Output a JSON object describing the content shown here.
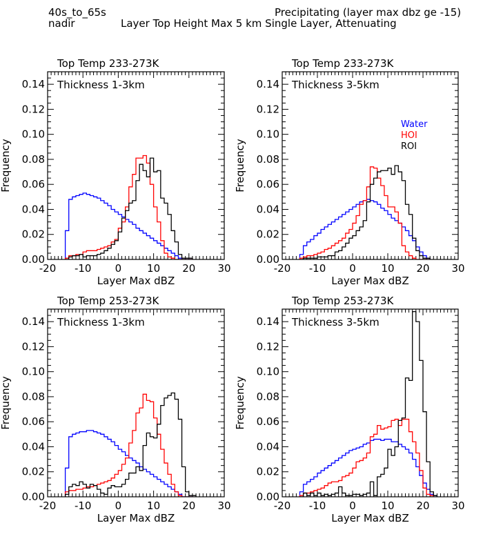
{
  "header": {
    "region": "40s_to_65s",
    "view": "nadir",
    "condition": "Precipitating (layer max dbz ge -15)",
    "subtitle": "Layer Top Height Max 5 km Single Layer, Attenuating"
  },
  "legend": [
    {
      "name": "Water",
      "color": "#0000ff"
    },
    {
      "name": "HOI",
      "color": "#ff0000"
    },
    {
      "name": "ROI",
      "color": "#000000"
    }
  ],
  "chart_data": [
    {
      "type": "histogram-step",
      "title": "Top Temp 233-273K",
      "annotation": "Thickness 1-3km",
      "xlabel": "Layer Max dBZ",
      "ylabel": "Frequency",
      "xlim": [
        -20,
        30
      ],
      "ylim": [
        0,
        0.15
      ],
      "xticks": [
        "-20",
        "-10",
        "0",
        "10",
        "20",
        "30"
      ],
      "yticks": [
        "0.00",
        "0.02",
        "0.04",
        "0.06",
        "0.08",
        "0.10",
        "0.12",
        "0.14"
      ],
      "bin_start": -15,
      "bin_width": 1,
      "series": [
        {
          "name": "Water",
          "color": "#0000ff",
          "values": [
            0.023,
            0.048,
            0.05,
            0.051,
            0.052,
            0.053,
            0.052,
            0.051,
            0.05,
            0.049,
            0.047,
            0.045,
            0.043,
            0.04,
            0.038,
            0.036,
            0.034,
            0.032,
            0.03,
            0.028,
            0.025,
            0.023,
            0.021,
            0.019,
            0.017,
            0.015,
            0.013,
            0.011,
            0.009,
            0.007,
            0.005,
            0.003,
            0.001,
            0.0,
            0.0,
            0.0
          ]
        },
        {
          "name": "HOI",
          "color": "#ff0000",
          "values": [
            0.001,
            0.003,
            0.003,
            0.004,
            0.004,
            0.006,
            0.007,
            0.007,
            0.007,
            0.008,
            0.009,
            0.01,
            0.011,
            0.014,
            0.016,
            0.025,
            0.03,
            0.042,
            0.058,
            0.068,
            0.081,
            0.081,
            0.083,
            0.077,
            0.06,
            0.042,
            0.03,
            0.015,
            0.005,
            0.002,
            0.001,
            0.0,
            0.0,
            0.0,
            0.0,
            0.0
          ]
        },
        {
          "name": "ROI",
          "color": "#000000",
          "values": [
            0.0,
            0.002,
            0.003,
            0.003,
            0.004,
            0.002,
            0.003,
            0.003,
            0.003,
            0.004,
            0.005,
            0.007,
            0.009,
            0.012,
            0.015,
            0.022,
            0.033,
            0.039,
            0.045,
            0.047,
            0.063,
            0.076,
            0.071,
            0.066,
            0.081,
            0.07,
            0.071,
            0.049,
            0.045,
            0.036,
            0.023,
            0.014,
            0.004,
            0.001,
            0.001,
            0.001
          ]
        }
      ]
    },
    {
      "type": "histogram-step",
      "title": "Top Temp 233-273K",
      "annotation": "Thickness 3-5km",
      "xlabel": "Layer Max dBZ",
      "ylabel": "Frequency",
      "xlim": [
        -20,
        30
      ],
      "ylim": [
        0,
        0.15
      ],
      "xticks": [
        "-20",
        "-10",
        "0",
        "10",
        "20",
        "30"
      ],
      "yticks": [
        "0.00",
        "0.02",
        "0.04",
        "0.06",
        "0.08",
        "0.10",
        "0.12",
        "0.14"
      ],
      "bin_start": -15,
      "bin_width": 1,
      "series": [
        {
          "name": "Water",
          "color": "#0000ff",
          "values": [
            0.004,
            0.011,
            0.014,
            0.016,
            0.019,
            0.021,
            0.024,
            0.026,
            0.028,
            0.03,
            0.032,
            0.034,
            0.036,
            0.038,
            0.04,
            0.042,
            0.044,
            0.046,
            0.047,
            0.048,
            0.047,
            0.046,
            0.044,
            0.041,
            0.039,
            0.036,
            0.033,
            0.031,
            0.029,
            0.026,
            0.023,
            0.019,
            0.015,
            0.01,
            0.006,
            0.003,
            0.001
          ]
        },
        {
          "name": "HOI",
          "color": "#ff0000",
          "values": [
            0.001,
            0.002,
            0.003,
            0.003,
            0.004,
            0.005,
            0.006,
            0.008,
            0.009,
            0.011,
            0.013,
            0.015,
            0.017,
            0.021,
            0.024,
            0.029,
            0.035,
            0.044,
            0.047,
            0.058,
            0.074,
            0.073,
            0.065,
            0.059,
            0.051,
            0.042,
            0.042,
            0.038,
            0.029,
            0.011,
            0.006,
            0.003,
            0.001,
            0.0,
            0.0,
            0.0,
            0.0
          ]
        },
        {
          "name": "ROI",
          "color": "#000000",
          "values": [
            0.0,
            0.001,
            0.001,
            0.001,
            0.001,
            0.002,
            0.002,
            0.002,
            0.003,
            0.003,
            0.006,
            0.007,
            0.01,
            0.013,
            0.017,
            0.019,
            0.023,
            0.026,
            0.031,
            0.046,
            0.06,
            0.065,
            0.07,
            0.071,
            0.071,
            0.073,
            0.068,
            0.075,
            0.07,
            0.063,
            0.044,
            0.036,
            0.017,
            0.007,
            0.003,
            0.001,
            0.001
          ]
        }
      ]
    },
    {
      "type": "histogram-step",
      "title": "Top Temp 253-273K",
      "annotation": "Thickness 1-3km",
      "xlabel": "Layer Max dBZ",
      "ylabel": "Frequency",
      "xlim": [
        -20,
        30
      ],
      "ylim": [
        0,
        0.15
      ],
      "xticks": [
        "-20",
        "-10",
        "0",
        "10",
        "20",
        "30"
      ],
      "yticks": [
        "0.00",
        "0.02",
        "0.04",
        "0.06",
        "0.08",
        "0.10",
        "0.12",
        "0.14"
      ],
      "bin_start": -15,
      "bin_width": 1,
      "series": [
        {
          "name": "Water",
          "color": "#0000ff",
          "values": [
            0.023,
            0.048,
            0.05,
            0.051,
            0.052,
            0.052,
            0.053,
            0.053,
            0.052,
            0.051,
            0.05,
            0.048,
            0.046,
            0.044,
            0.041,
            0.038,
            0.036,
            0.033,
            0.031,
            0.029,
            0.027,
            0.024,
            0.022,
            0.02,
            0.018,
            0.016,
            0.014,
            0.012,
            0.01,
            0.008,
            0.006,
            0.004,
            0.002,
            0.0,
            0.0,
            0.0
          ]
        },
        {
          "name": "HOI",
          "color": "#ff0000",
          "values": [
            0.004,
            0.005,
            0.005,
            0.006,
            0.006,
            0.007,
            0.008,
            0.008,
            0.009,
            0.01,
            0.011,
            0.012,
            0.013,
            0.015,
            0.018,
            0.021,
            0.026,
            0.031,
            0.043,
            0.053,
            0.067,
            0.071,
            0.082,
            0.077,
            0.076,
            0.063,
            0.05,
            0.038,
            0.027,
            0.018,
            0.01,
            0.004,
            0.001,
            0.0,
            0.0,
            0.0
          ]
        },
        {
          "name": "ROI",
          "color": "#000000",
          "values": [
            0.002,
            0.008,
            0.01,
            0.009,
            0.012,
            0.01,
            0.007,
            0.01,
            0.009,
            0.006,
            0.003,
            0.002,
            0.007,
            0.009,
            0.008,
            0.008,
            0.01,
            0.014,
            0.019,
            0.019,
            0.024,
            0.021,
            0.041,
            0.051,
            0.048,
            0.047,
            0.058,
            0.073,
            0.079,
            0.081,
            0.083,
            0.078,
            0.062,
            0.024,
            0.004,
            0.001,
            0.001
          ]
        }
      ]
    },
    {
      "type": "histogram-step",
      "title": "Top Temp 253-273K",
      "annotation": "Thickness 3-5km",
      "xlabel": "Layer Max dBZ",
      "ylabel": "Frequency",
      "xlim": [
        -20,
        30
      ],
      "ylim": [
        0,
        0.15
      ],
      "xticks": [
        "-20",
        "-10",
        "0",
        "10",
        "20",
        "30"
      ],
      "yticks": [
        "0.00",
        "0.02",
        "0.04",
        "0.06",
        "0.08",
        "0.10",
        "0.12",
        "0.14"
      ],
      "bin_start": -15,
      "bin_width": 1,
      "series": [
        {
          "name": "Water",
          "color": "#0000ff",
          "values": [
            0.004,
            0.01,
            0.012,
            0.014,
            0.016,
            0.019,
            0.021,
            0.023,
            0.025,
            0.027,
            0.029,
            0.031,
            0.033,
            0.035,
            0.037,
            0.038,
            0.039,
            0.04,
            0.042,
            0.043,
            0.045,
            0.046,
            0.046,
            0.045,
            0.046,
            0.046,
            0.044,
            0.044,
            0.042,
            0.04,
            0.038,
            0.035,
            0.03,
            0.024,
            0.017,
            0.011,
            0.006,
            0.002,
            0.001
          ]
        },
        {
          "name": "HOI",
          "color": "#ff0000",
          "values": [
            0.001,
            0.003,
            0.003,
            0.004,
            0.005,
            0.006,
            0.007,
            0.009,
            0.011,
            0.012,
            0.012,
            0.013,
            0.016,
            0.017,
            0.019,
            0.023,
            0.028,
            0.029,
            0.031,
            0.035,
            0.048,
            0.05,
            0.057,
            0.054,
            0.055,
            0.056,
            0.061,
            0.062,
            0.057,
            0.062,
            0.062,
            0.052,
            0.044,
            0.035,
            0.021,
            0.007,
            0.002,
            0.001
          ]
        },
        {
          "name": "ROI",
          "color": "#000000",
          "values": [
            0.0,
            0.003,
            0.001,
            0.003,
            0.001,
            0.003,
            0.001,
            0.002,
            0.001,
            0.002,
            0.003,
            0.008,
            0.003,
            0.001,
            0.001,
            0.002,
            0.002,
            0.001,
            0.002,
            0.003,
            0.012,
            0.001,
            0.016,
            0.018,
            0.023,
            0.038,
            0.033,
            0.04,
            0.061,
            0.063,
            0.095,
            0.093,
            0.148,
            0.14,
            0.109,
            0.068,
            0.028,
            0.004,
            0.001
          ]
        }
      ]
    }
  ]
}
